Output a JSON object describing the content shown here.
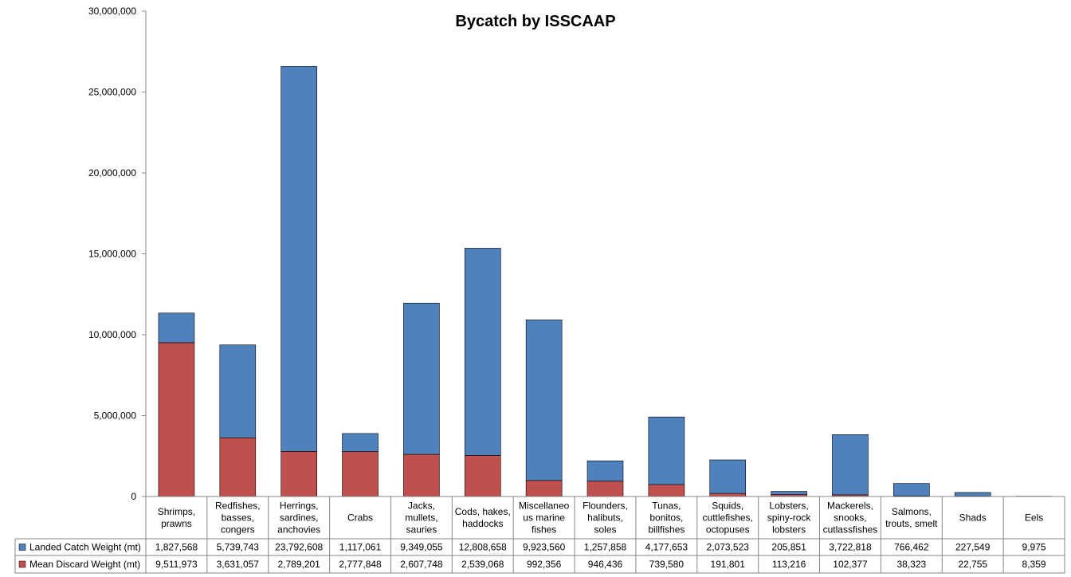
{
  "chart_data": {
    "type": "bar",
    "stacked": true,
    "title": "Bycatch by ISSCAAP",
    "xlabel": "",
    "ylabel": "",
    "ylim": [
      0,
      30000000
    ],
    "yticks": [
      "0",
      "5,000,000",
      "10,000,000",
      "15,000,000",
      "20,000,000",
      "25,000,000",
      "30,000,000"
    ],
    "grid": false,
    "legend": "data-table-left",
    "categories": [
      [
        "Shrimps,",
        "prawns"
      ],
      [
        "Redfishes,",
        "basses,",
        "congers"
      ],
      [
        "Herrings,",
        "sardines,",
        "anchovies"
      ],
      [
        "Crabs"
      ],
      [
        "Jacks,",
        "mullets,",
        "sauries"
      ],
      [
        "Cods, hakes,",
        "haddocks"
      ],
      [
        "Miscellaneo",
        "us marine",
        "fishes"
      ],
      [
        "Flounders,",
        "halibuts,",
        "soles"
      ],
      [
        "Tunas,",
        "bonitos,",
        "billfishes"
      ],
      [
        "Squids,",
        "cuttlefishes,",
        "octopuses"
      ],
      [
        "Lobsters,",
        "spiny-rock",
        "lobsters"
      ],
      [
        "Mackerels,",
        "snooks,",
        "cutlassfishes"
      ],
      [
        "Salmons,",
        "trouts, smelt"
      ],
      [
        "Shads"
      ],
      [
        "Eels"
      ]
    ],
    "series": [
      {
        "name": "Landed Catch Weight (mt)",
        "color": "#4f81bd",
        "values": [
          1827568,
          5739743,
          23792608,
          1117061,
          9349055,
          12808658,
          9923560,
          1257858,
          4177653,
          2073523,
          205851,
          3722818,
          766462,
          227549,
          9975
        ],
        "labels": [
          "1,827,568",
          "5,739,743",
          "23,792,608",
          "1,117,061",
          "9,349,055",
          "12,808,658",
          "9,923,560",
          "1,257,858",
          "4,177,653",
          "2,073,523",
          "205,851",
          "3,722,818",
          "766,462",
          "227,549",
          "9,975"
        ]
      },
      {
        "name": "Mean Discard Weight (mt)",
        "color": "#c0504d",
        "values": [
          9511973,
          3631057,
          2789201,
          2777848,
          2607748,
          2539068,
          992356,
          946436,
          739580,
          191801,
          113216,
          102377,
          38323,
          22755,
          8359
        ],
        "labels": [
          "9,511,973",
          "3,631,057",
          "2,789,201",
          "2,777,848",
          "2,607,748",
          "2,539,068",
          "992,356",
          "946,436",
          "739,580",
          "191,801",
          "113,216",
          "102,377",
          "38,323",
          "22,755",
          "8,359"
        ]
      }
    ]
  }
}
